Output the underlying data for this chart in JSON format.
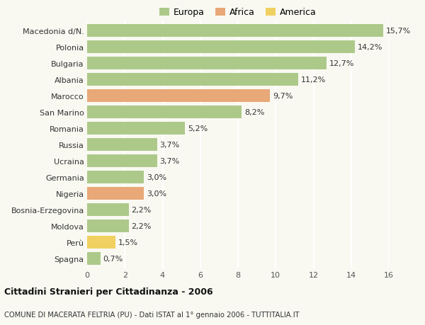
{
  "categories": [
    "Macedonia d/N.",
    "Polonia",
    "Bulgaria",
    "Albania",
    "Marocco",
    "San Marino",
    "Romania",
    "Russia",
    "Ucraina",
    "Germania",
    "Nigeria",
    "Bosnia-Erzegovina",
    "Moldova",
    "Perù",
    "Spagna"
  ],
  "values": [
    15.7,
    14.2,
    12.7,
    11.2,
    9.7,
    8.2,
    5.2,
    3.7,
    3.7,
    3.0,
    3.0,
    2.2,
    2.2,
    1.5,
    0.7
  ],
  "labels": [
    "15,7%",
    "14,2%",
    "12,7%",
    "11,2%",
    "9,7%",
    "8,2%",
    "5,2%",
    "3,7%",
    "3,7%",
    "3,0%",
    "3,0%",
    "2,2%",
    "2,2%",
    "1,5%",
    "0,7%"
  ],
  "continents": [
    "Europa",
    "Europa",
    "Europa",
    "Europa",
    "Africa",
    "Europa",
    "Europa",
    "Europa",
    "Europa",
    "Europa",
    "Africa",
    "Europa",
    "Europa",
    "America",
    "Europa"
  ],
  "colors": {
    "Europa": "#adc98a",
    "Africa": "#e8a878",
    "America": "#f0d060"
  },
  "legend": {
    "Europa": "#adc98a",
    "Africa": "#e8a878",
    "America": "#f0d060"
  },
  "xlim": [
    0,
    16
  ],
  "xticks": [
    0,
    2,
    4,
    6,
    8,
    10,
    12,
    14,
    16
  ],
  "title_bold": "Cittadini Stranieri per Cittadinanza - 2006",
  "subtitle": "COMUNE DI MACERATA FELTRIA (PU) - Dati ISTAT al 1° gennaio 2006 - TUTTITALIA.IT",
  "background_color": "#f9f9f2",
  "grid_color": "#ffffff",
  "bar_height": 0.78
}
